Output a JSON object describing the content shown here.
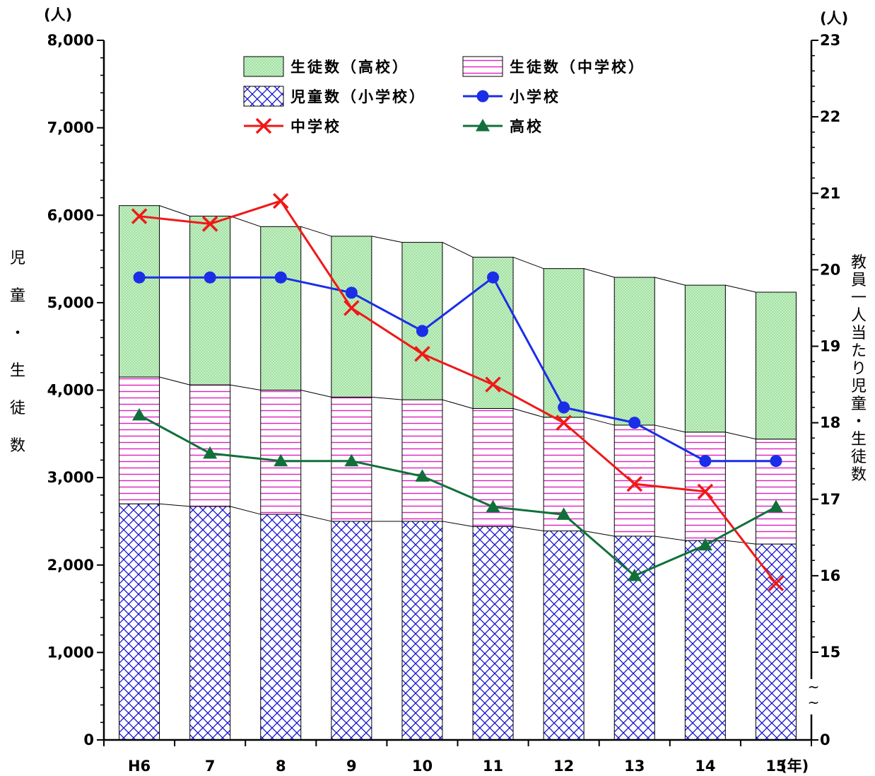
{
  "chart_data": {
    "type": "bar",
    "stacked": true,
    "categories": [
      "H6",
      "7",
      "8",
      "9",
      "10",
      "11",
      "12",
      "13",
      "14",
      "15"
    ],
    "x_unit": "(年)",
    "y_left": {
      "label": "児童・生徒数",
      "unit": "(人)",
      "lim": [
        0,
        8000
      ],
      "ticks": [
        "0",
        "1,000",
        "2,000",
        "3,000",
        "4,000",
        "5,000",
        "6,000",
        "7,000",
        "8,000"
      ]
    },
    "y_right": {
      "label": "教員一人当たり児童・生徒数",
      "unit": "(人)",
      "lim_broken": [
        0,
        23
      ],
      "visible_range": [
        15,
        23
      ],
      "ticks": [
        "0",
        "15",
        "16",
        "17",
        "18",
        "19",
        "20",
        "21",
        "22",
        "23"
      ],
      "break_mark": "~\n~"
    },
    "bar_series": [
      {
        "name": "児童数（小学校）",
        "pattern": "crosshatch",
        "color": "#1010d0",
        "values": [
          2700,
          2670,
          2580,
          2500,
          2500,
          2440,
          2390,
          2330,
          2280,
          2240
        ]
      },
      {
        "name": "生徒数（中学校）",
        "pattern": "horizontal-lines",
        "color": "#e020c0",
        "values": [
          1450,
          1390,
          1420,
          1420,
          1390,
          1350,
          1300,
          1270,
          1240,
          1200
        ]
      },
      {
        "name": "生徒数（高校）",
        "pattern": "dots",
        "color": "#a8e8a8",
        "values": [
          1960,
          1930,
          1870,
          1840,
          1800,
          1730,
          1700,
          1690,
          1680,
          1680
        ]
      }
    ],
    "line_series": [
      {
        "name": "小学校",
        "marker": "circle",
        "color": "#1a2ee8",
        "values": [
          19.9,
          19.9,
          19.9,
          19.7,
          19.2,
          19.9,
          18.2,
          18.0,
          17.5,
          17.5
        ]
      },
      {
        "name": "中学校",
        "marker": "x",
        "color": "#f01818",
        "values": [
          20.7,
          20.6,
          20.9,
          19.5,
          18.9,
          18.5,
          18.0,
          17.2,
          17.1,
          15.9
        ]
      },
      {
        "name": "高校",
        "marker": "triangle",
        "color": "#11703a",
        "values": [
          18.1,
          17.6,
          17.5,
          17.5,
          17.3,
          16.9,
          16.8,
          16.0,
          16.4,
          16.9
        ]
      }
    ],
    "legend": {
      "position": "top-center",
      "items": [
        {
          "label": "生徒数（高校）",
          "kind": "bar",
          "series": "生徒数（高校）"
        },
        {
          "label": "生徒数（中学校）",
          "kind": "bar",
          "series": "生徒数（中学校）"
        },
        {
          "label": "児童数（小学校）",
          "kind": "bar",
          "series": "児童数（小学校）"
        },
        {
          "label": "小学校",
          "kind": "line",
          "series": "小学校"
        },
        {
          "label": "中学校",
          "kind": "line",
          "series": "中学校"
        },
        {
          "label": "高校",
          "kind": "line",
          "series": "高校"
        }
      ]
    },
    "grid": false
  }
}
